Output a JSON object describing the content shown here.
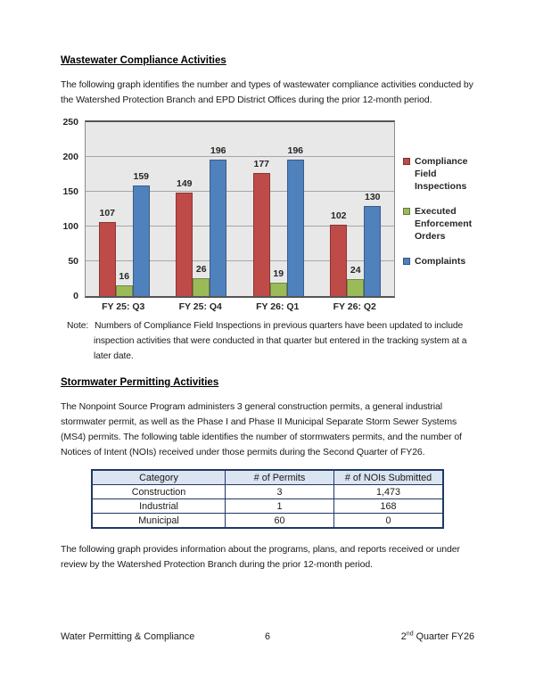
{
  "section1": {
    "heading": "Wastewater Compliance Activities",
    "paragraph": "The following graph identifies the number and types of wastewater compliance activities conducted by the Watershed Protection Branch and EPD District Offices during the prior 12-month period."
  },
  "chart_data": {
    "type": "bar",
    "categories": [
      "FY 25: Q3",
      "FY 25: Q4",
      "FY 26: Q1",
      "FY 26: Q2"
    ],
    "series": [
      {
        "name": "Compliance Field Inspections",
        "color": "#BE4B48",
        "values": [
          107,
          149,
          177,
          102
        ]
      },
      {
        "name": "Executed Enforcement Orders",
        "color": "#9BBB59",
        "values": [
          16,
          26,
          19,
          24
        ]
      },
      {
        "name": "Complaints",
        "color": "#4F81BD",
        "values": [
          159,
          196,
          196,
          130
        ]
      }
    ],
    "ylim": [
      0,
      250
    ],
    "yticks": [
      0,
      50,
      100,
      150,
      200,
      250
    ],
    "grid": true,
    "legend_position": "right",
    "plot_bg": "#E8E8E8",
    "gridline_color": "#A6A6A6",
    "data_labels": true
  },
  "note": {
    "label": "Note:",
    "text": "Numbers of Compliance Field Inspections in previous quarters have been updated to include inspection activities that were conducted in that quarter but entered in the tracking system at a later date."
  },
  "section2": {
    "heading": "Stormwater Permitting Activities",
    "paragraph": "The Nonpoint Source Program administers 3 general construction permits, a general industrial stormwater permit, as well as the Phase I and Phase II Municipal Separate Storm Sewer Systems (MS4) permits.  The following table identifies the number of stormwaters permits, and the number of Notices of Intent (NOIs) received under those permits during the Second Quarter of FY26.",
    "paragraph2": "The following graph provides information about the programs, plans, and reports received or under review by the Watershed Protection Branch during the prior 12-month period."
  },
  "stormwater_table": {
    "header_bg": "#DBE5F1",
    "border_color": "#1F3864",
    "columns": [
      "Category",
      "# of Permits",
      "# of NOIs Submitted"
    ],
    "rows": [
      {
        "cells": [
          "Construction",
          "3",
          "1,473"
        ]
      },
      {
        "cells": [
          "Industrial",
          "1",
          "168"
        ]
      },
      {
        "cells": [
          "Municipal",
          "60",
          "0"
        ]
      }
    ]
  },
  "footer": {
    "left": "Water Permitting & Compliance",
    "page_number": "6",
    "right": {
      "base": "2",
      "sup": "nd",
      "rest": " Quarter FY26"
    }
  }
}
